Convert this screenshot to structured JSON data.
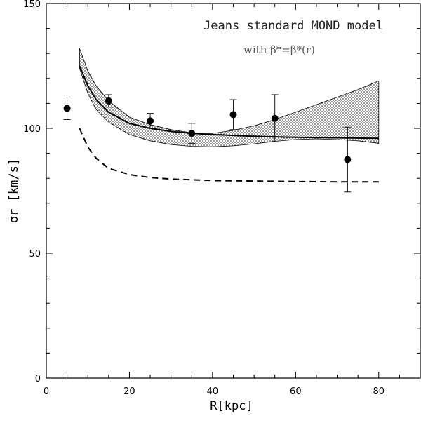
{
  "chart_data": {
    "type": "line",
    "title": "Jeans standard MOND model",
    "subtitle": "with β*=β*(r)",
    "xlabel": "R[kpc]",
    "ylabel": "σr [km/s]",
    "xlim": [
      0,
      90
    ],
    "ylim": [
      0,
      150
    ],
    "x_ticks": [
      0,
      20,
      40,
      60,
      80
    ],
    "y_ticks": [
      0,
      50,
      100,
      150
    ],
    "grid": false,
    "series": [
      {
        "style": "solid",
        "x": [
          8,
          10,
          12,
          15,
          20,
          25,
          30,
          35,
          40,
          50,
          60,
          70,
          80
        ],
        "y": [
          125,
          117,
          111.5,
          106.5,
          102,
          100,
          98.8,
          98,
          97.5,
          96.8,
          96.4,
          96.2,
          96
        ]
      },
      {
        "style": "dashed",
        "x": [
          8,
          10,
          12,
          15,
          20,
          25,
          30,
          40,
          50,
          60,
          70,
          80
        ],
        "y": [
          100,
          92.5,
          88,
          84,
          81.5,
          80.3,
          79.7,
          79.1,
          78.9,
          78.7,
          78.6,
          78.6
        ]
      }
    ],
    "band": {
      "style": "dotted-fill",
      "x": [
        8,
        10,
        12,
        15,
        20,
        25,
        30,
        35,
        40,
        45,
        50,
        55,
        60,
        65,
        70,
        75,
        80
      ],
      "upper": [
        132,
        123,
        117,
        111,
        104.5,
        101.5,
        99.5,
        98.2,
        98,
        99.2,
        101,
        103.5,
        106.5,
        109.5,
        112.5,
        115.5,
        119
      ],
      "lower": [
        124,
        114,
        107.5,
        102.5,
        97.5,
        95,
        93.5,
        92.8,
        92.6,
        93,
        93.8,
        94.8,
        95.5,
        95.8,
        95.5,
        95,
        94
      ]
    },
    "points": {
      "x": [
        5,
        15,
        25,
        35,
        45,
        55,
        72.5
      ],
      "y": [
        108,
        111,
        103,
        98,
        105.5,
        104,
        87.5
      ],
      "yerr": [
        4.5,
        2.5,
        3,
        4,
        6,
        9.5,
        13
      ]
    }
  }
}
